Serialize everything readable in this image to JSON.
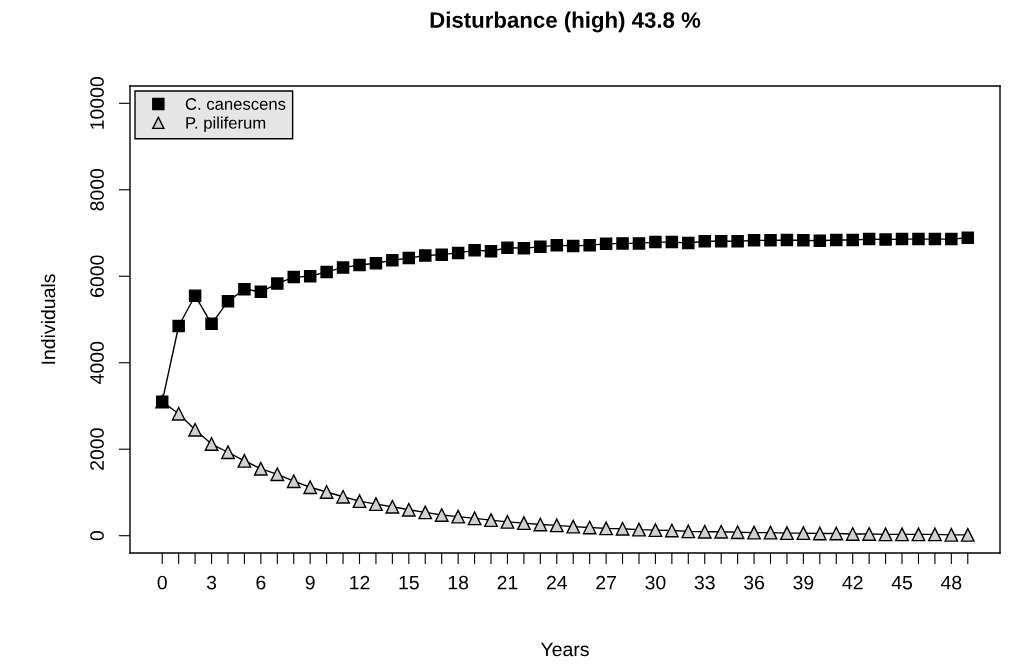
{
  "chart_data": {
    "type": "line",
    "title": "Disturbance (high) 43.8 %",
    "xlabel": "Years",
    "ylabel": "Individuals",
    "x": [
      0,
      1,
      2,
      3,
      4,
      5,
      6,
      7,
      8,
      9,
      10,
      11,
      12,
      13,
      14,
      15,
      16,
      17,
      18,
      19,
      20,
      21,
      22,
      23,
      24,
      25,
      26,
      27,
      28,
      29,
      30,
      31,
      32,
      33,
      34,
      35,
      36,
      37,
      38,
      39,
      40,
      41,
      42,
      43,
      44,
      45,
      46,
      47,
      48,
      49
    ],
    "series": [
      {
        "name": "C. canescens",
        "color": "#000000",
        "marker": "square",
        "values": [
          3100,
          4850,
          5550,
          4900,
          5420,
          5700,
          5640,
          5830,
          5980,
          6000,
          6100,
          6200,
          6260,
          6300,
          6370,
          6420,
          6480,
          6500,
          6540,
          6600,
          6580,
          6660,
          6650,
          6680,
          6720,
          6700,
          6720,
          6750,
          6760,
          6760,
          6790,
          6790,
          6770,
          6810,
          6810,
          6810,
          6830,
          6830,
          6840,
          6830,
          6820,
          6840,
          6840,
          6860,
          6850,
          6860,
          6860,
          6860,
          6860,
          6890
        ]
      },
      {
        "name": "P. piliferum",
        "color": "#000000",
        "marker": "triangle",
        "values": [
          3100,
          2820,
          2450,
          2120,
          1930,
          1730,
          1550,
          1420,
          1260,
          1120,
          1010,
          900,
          800,
          730,
          670,
          600,
          540,
          480,
          440,
          400,
          360,
          320,
          290,
          260,
          240,
          210,
          190,
          170,
          160,
          140,
          130,
          120,
          100,
          90,
          90,
          80,
          70,
          70,
          60,
          60,
          50,
          50,
          40,
          40,
          30,
          30,
          30,
          30,
          20,
          20
        ]
      }
    ],
    "xlim": [
      -1.96,
      50.96
    ],
    "ylim": [
      -400,
      10400
    ],
    "xticks": [
      0,
      {
        "value": 1,
        "label": null
      },
      {
        "value": 2,
        "label": null
      },
      3,
      {
        "value": 4,
        "label": null
      },
      {
        "value": 5,
        "label": null
      },
      6,
      {
        "value": 7,
        "label": null
      },
      {
        "value": 8,
        "label": null
      },
      9,
      {
        "value": 10,
        "label": null
      },
      {
        "value": 11,
        "label": null
      },
      12,
      {
        "value": 13,
        "label": null
      },
      {
        "value": 14,
        "label": null
      },
      15,
      {
        "value": 16,
        "label": null
      },
      {
        "value": 17,
        "label": null
      },
      18,
      {
        "value": 19,
        "label": null
      },
      {
        "value": 20,
        "label": null
      },
      21,
      {
        "value": 22,
        "label": null
      },
      {
        "value": 23,
        "label": null
      },
      24,
      {
        "value": 25,
        "label": null
      },
      {
        "value": 26,
        "label": null
      },
      27,
      {
        "value": 28,
        "label": null
      },
      {
        "value": 29,
        "label": null
      },
      30,
      {
        "value": 31,
        "label": null
      },
      {
        "value": 32,
        "label": null
      },
      33,
      {
        "value": 34,
        "label": null
      },
      {
        "value": 35,
        "label": null
      },
      36,
      {
        "value": 37,
        "label": null
      },
      {
        "value": 38,
        "label": null
      },
      39,
      {
        "value": 40,
        "label": null
      },
      {
        "value": 41,
        "label": null
      },
      42,
      {
        "value": 43,
        "label": null
      },
      {
        "value": 44,
        "label": null
      },
      45,
      {
        "value": 46,
        "label": null
      },
      {
        "value": 47,
        "label": null
      },
      48,
      {
        "value": 49,
        "label": null
      }
    ],
    "yticks": [
      0,
      2000,
      4000,
      6000,
      8000,
      10000
    ],
    "grid": false,
    "legend": "top left",
    "line_style": "solid"
  }
}
